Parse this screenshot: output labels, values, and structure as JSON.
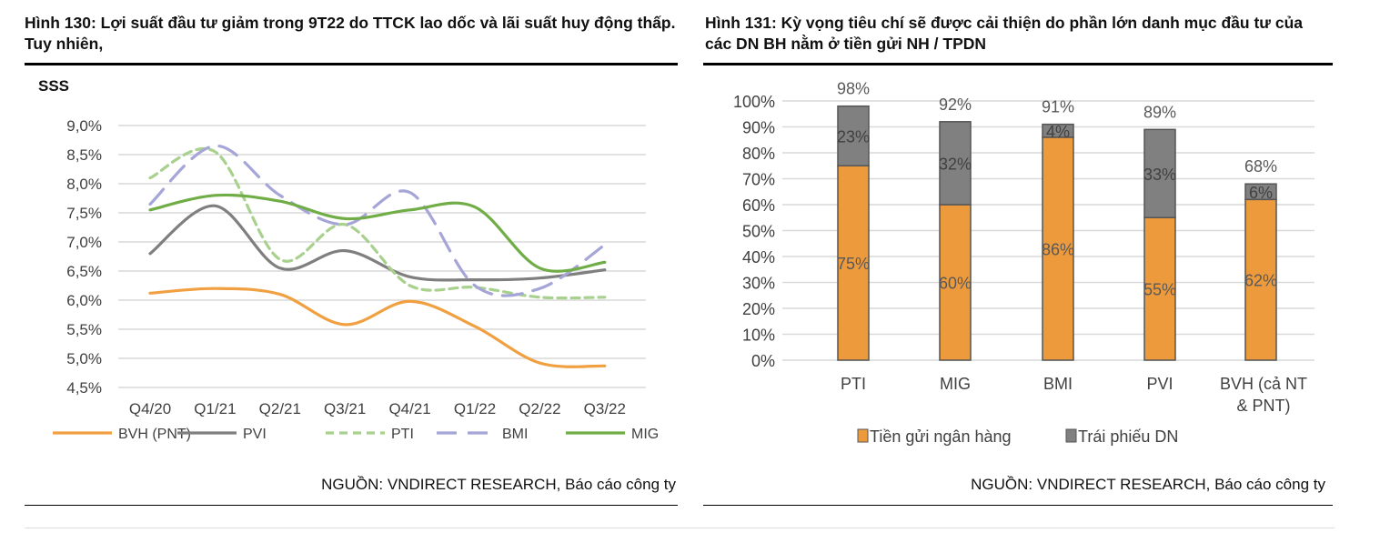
{
  "left": {
    "title": "Hình 130: Lợi suất đầu tư giảm trong 9T22 do TTCK lao dốc và lãi suất huy động thấp. Tuy nhiên,",
    "source": "NGUỒN: VNDIRECT RESEARCH, Báo cáo công ty"
  },
  "right": {
    "title": "Hình 131:  Kỳ vọng tiêu chí sẽ được cải thiện do phần lớn danh mục đầu tư của các DN BH nằm ở tiền gửi NH / TPDN",
    "source": "NGUỒN: VNDIRECT RESEARCH, Báo cáo công ty"
  },
  "chart_data": [
    {
      "type": "line",
      "title": "SSS",
      "categories": [
        "Q4/20",
        "Q1/21",
        "Q2/21",
        "Q3/21",
        "Q4/21",
        "Q1/22",
        "Q2/22",
        "Q3/22"
      ],
      "ylim": [
        4.5,
        9.0
      ],
      "yticks": [
        "4,5%",
        "5,0%",
        "5,5%",
        "6,0%",
        "6,5%",
        "7,0%",
        "7,5%",
        "8,0%",
        "8,5%",
        "9,0%"
      ],
      "grid": true,
      "smooth": true,
      "legend": "bottom",
      "series": [
        {
          "name": "BVH (PNT)",
          "color": "#f0a040",
          "dash": "solid",
          "values": [
            6.12,
            6.2,
            6.1,
            5.58,
            5.98,
            5.55,
            4.92,
            4.87
          ]
        },
        {
          "name": "PVI",
          "color": "#7f7f7f",
          "dash": "solid",
          "values": [
            6.8,
            7.62,
            6.55,
            6.85,
            6.4,
            6.35,
            6.38,
            6.52
          ]
        },
        {
          "name": "PTI",
          "color": "#a9d18e",
          "dash": "short",
          "values": [
            8.1,
            8.55,
            6.7,
            7.3,
            6.25,
            6.22,
            6.05,
            6.05
          ]
        },
        {
          "name": "BMI",
          "color": "#a5a5d8",
          "dash": "long",
          "values": [
            7.65,
            8.65,
            7.8,
            7.3,
            7.85,
            6.25,
            6.2,
            6.95
          ]
        },
        {
          "name": "MIG",
          "color": "#70ad47",
          "dash": "solid",
          "values": [
            7.55,
            7.8,
            7.7,
            7.4,
            7.55,
            7.6,
            6.55,
            6.65
          ]
        }
      ]
    },
    {
      "type": "bar",
      "stacked": true,
      "categories": [
        "PTI",
        "MIG",
        "BMI",
        "PVI",
        "BVH (cả NT & PNT)"
      ],
      "ylim": [
        0,
        100
      ],
      "yticks": [
        "0%",
        "10%",
        "20%",
        "30%",
        "40%",
        "50%",
        "60%",
        "70%",
        "80%",
        "90%",
        "100%"
      ],
      "grid": true,
      "legend": "bottom",
      "series": [
        {
          "name": "Tiền gửi ngân hàng",
          "color": "#ed9a3d",
          "values": [
            75,
            60,
            86,
            55,
            62
          ],
          "labels": [
            "75%",
            "60%",
            "86%",
            "55%",
            "62%"
          ]
        },
        {
          "name": "Trái phiếu DN",
          "color": "#808080",
          "values": [
            23,
            32,
            4,
            33,
            6
          ],
          "labels": [
            "23%",
            "32%",
            "4%",
            "33%",
            "6%"
          ]
        }
      ],
      "totals": [
        98,
        92,
        91,
        89,
        68
      ],
      "total_labels": [
        "98%",
        "92%",
        "91%",
        "89%",
        "68%"
      ]
    }
  ]
}
